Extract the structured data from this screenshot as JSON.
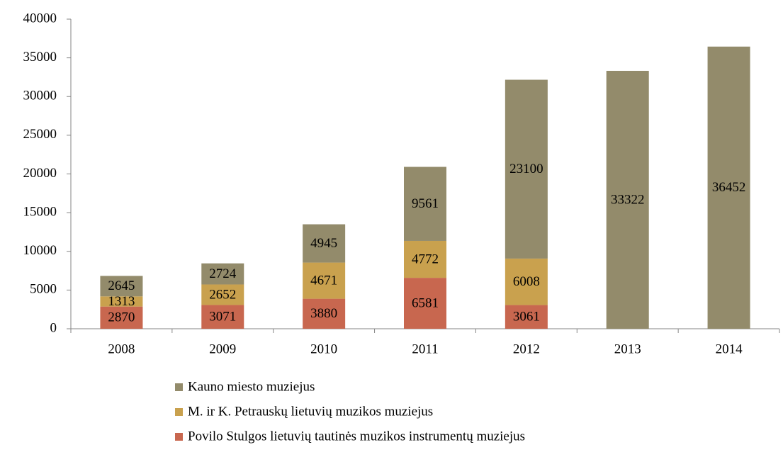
{
  "chart_data": {
    "type": "bar",
    "stacked": true,
    "categories": [
      "2008",
      "2009",
      "2010",
      "2011",
      "2012",
      "2013",
      "2014"
    ],
    "series": [
      {
        "name": "Povilo Stulgos lietuvių tautinės muzikos instrumentų muziejus",
        "color": "#c8674f",
        "values": [
          2870,
          3071,
          3880,
          6581,
          3061,
          null,
          null
        ]
      },
      {
        "name": "M. ir K. Petrauskų lietuvių muzikos muziejus",
        "color": "#c9a14e",
        "values": [
          1313,
          2652,
          4671,
          4772,
          6008,
          null,
          null
        ]
      },
      {
        "name": "Kauno miesto muziejus",
        "color": "#938b6b",
        "values": [
          2645,
          2724,
          4945,
          9561,
          23100,
          33322,
          36452
        ]
      }
    ],
    "ylim": [
      0,
      40000
    ],
    "yticks": [
      0,
      5000,
      10000,
      15000,
      20000,
      25000,
      30000,
      35000,
      40000
    ],
    "grid": false,
    "legend": "bottom"
  }
}
